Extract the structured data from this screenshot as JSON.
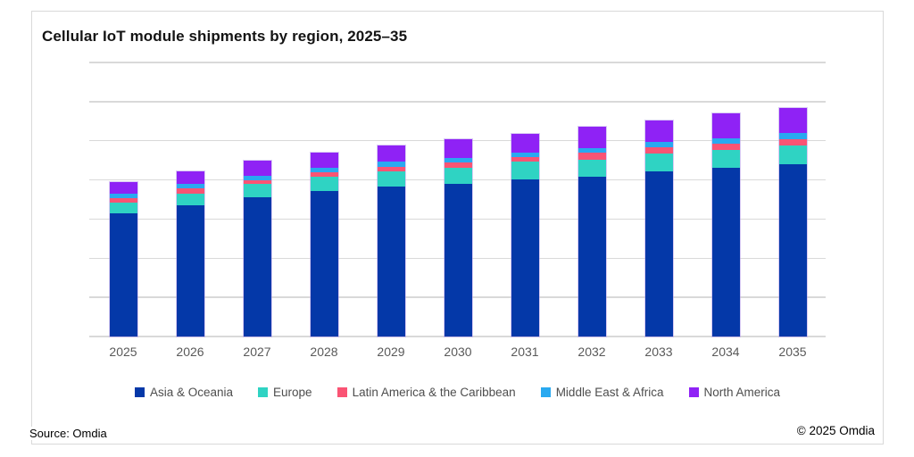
{
  "chart": {
    "title": "Cellular IoT module shipments by region, 2025–35",
    "source_note": "Source: Omdia",
    "copyright": "© 2025 Omdia"
  },
  "colors": {
    "background": "#ffffff",
    "frame_border": "#d9d9d9",
    "gridline": "#d9d9d9",
    "bar_outline": "#b9a0eb",
    "title_text": "#141414",
    "axis_label_text": "#595959",
    "legend_text": "#4d4d4d",
    "footer_text": "#000000"
  },
  "chart_data": {
    "type": "bar",
    "stacked": true,
    "title": "Cellular IoT module shipments by region, 2025–35",
    "categories": [
      "2025",
      "2026",
      "2027",
      "2028",
      "2029",
      "2030",
      "2031",
      "2032",
      "2033",
      "2034",
      "2035"
    ],
    "series": [
      {
        "name": "Asia & Oceania",
        "color": "#0438A8",
        "values": [
          3.14,
          3.35,
          3.56,
          3.71,
          3.83,
          3.9,
          4.02,
          4.08,
          4.22,
          4.31,
          4.39
        ]
      },
      {
        "name": "Europe",
        "color": "#2FD3C3",
        "values": [
          0.29,
          0.31,
          0.34,
          0.38,
          0.4,
          0.4,
          0.44,
          0.44,
          0.45,
          0.46,
          0.48
        ]
      },
      {
        "name": "Latin America & the Caribbean",
        "color": "#FA5474",
        "values": [
          0.11,
          0.13,
          0.1,
          0.11,
          0.11,
          0.15,
          0.13,
          0.18,
          0.17,
          0.16,
          0.18
        ]
      },
      {
        "name": "Middle East & Africa",
        "color": "#29A9F0",
        "values": [
          0.11,
          0.1,
          0.11,
          0.11,
          0.13,
          0.11,
          0.11,
          0.11,
          0.13,
          0.14,
          0.15
        ]
      },
      {
        "name": "North America",
        "color": "#8F22F5",
        "values": [
          0.3,
          0.33,
          0.38,
          0.39,
          0.41,
          0.47,
          0.48,
          0.55,
          0.55,
          0.62,
          0.63
        ]
      }
    ],
    "totals": [
      3.95,
      4.22,
      4.49,
      4.7,
      4.88,
      5.03,
      5.18,
      5.36,
      5.52,
      5.69,
      5.83
    ],
    "xlabel": "",
    "ylabel": "",
    "ylim": [
      0,
      7
    ],
    "y_axis_labels_visible": false,
    "units_note": "y-axis unlabeled in source; values expressed in gridline intervals",
    "gridline_count": 8,
    "grid": true,
    "legend_position": "bottom-center"
  }
}
